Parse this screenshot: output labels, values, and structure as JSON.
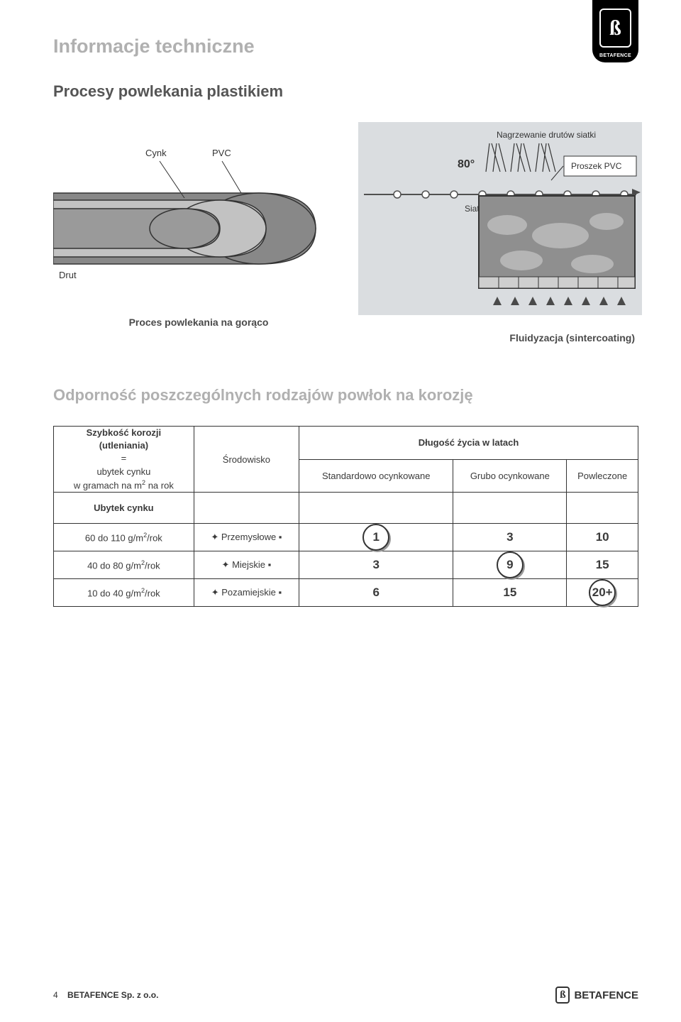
{
  "logo_brand": "BETAFENCE",
  "logo_symbol": "ß",
  "title": "Informacje techniczne",
  "subtitle": "Procesy powlekania plastikiem",
  "diagram1": {
    "label_cynk": "Cynk",
    "label_pvc": "PVC",
    "label_drut": "Drut",
    "caption": "Proces powlekania na gorąco",
    "color_drut": "#9a9a9a",
    "color_cynk": "#c2c2c2",
    "color_pvc": "#888888",
    "stroke": "#333333"
  },
  "diagram2": {
    "label_heating": "Nagrzewanie drutów siatki",
    "label_80": "80°",
    "label_powder": "Proszek PVC",
    "label_siatka": "Siatka zgrzewana",
    "caption": "Fluidyzacja (sintercoating)",
    "bg": "#dadde0",
    "tank_fill": "#8f8f8f",
    "tank_blob": "#b5b5b5",
    "brick": "#cfcfcf",
    "wire": "#505050",
    "arrow": "#4a4a4a"
  },
  "section2_title": "Odporność poszczególnych rodzajów powłok na korozję",
  "table": {
    "head_col1_l1": "Szybkość korozji",
    "head_col1_l2": "(utleniania)",
    "head_col1_l3": "=",
    "head_col1_l4": "ubytek cynku",
    "head_col1_l5": "w gramach na m² na rok",
    "head_col2": "Środowisko",
    "head_span": "Długość życia w latach",
    "sub1": "Standardowo ocynkowane",
    "sub2": "Grubo ocynkowane",
    "sub3": "Powleczone",
    "ubytek_label": "Ubytek cynku",
    "rows": [
      {
        "rate": "60 do 110 g/m²/rok",
        "env": "Przemysłowe",
        "v1": "1",
        "v2": "3",
        "v3": "10",
        "circle_col": 0
      },
      {
        "rate": "40 do 80 g/m²/rok",
        "env": "Miejskie",
        "v1": "3",
        "v2": "9",
        "v3": "15",
        "circle_col": 1
      },
      {
        "rate": "10 do 40 g/m²/rok",
        "env": "Pozamiejskie",
        "v1": "6",
        "v2": "15",
        "v3": "20+",
        "circle_col": 2
      }
    ]
  },
  "footer": {
    "page": "4",
    "company": "BETAFENCE Sp. z o.o.",
    "brand": "BETAFENCE",
    "symbol": "ß"
  }
}
